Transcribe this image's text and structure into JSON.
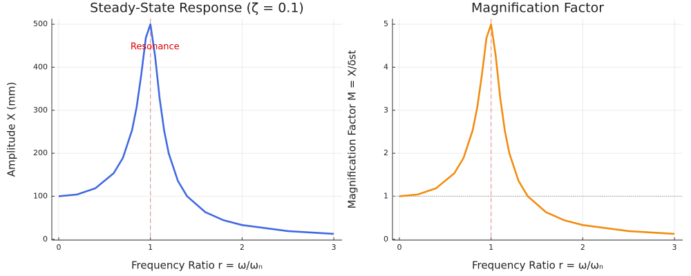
{
  "chart_data": [
    {
      "type": "line",
      "title": "Steady-State Response (ζ = 0.1)",
      "x_label": "Frequency Ratio r = ω/ωₙ",
      "y_label": "Amplitude X (mm)",
      "x": [
        0,
        0.2,
        0.4,
        0.6,
        0.7,
        0.8,
        0.85,
        0.9,
        0.95,
        1.0,
        1.05,
        1.1,
        1.15,
        1.2,
        1.3,
        1.4,
        1.6,
        1.8,
        2.0,
        2.5,
        3.0
      ],
      "series": [
        {
          "color": "#4169e1",
          "values": [
            100,
            104.1,
            118.5,
            153.6,
            189.1,
            253.8,
            307.3,
            382.1,
            468.2,
            500,
            427.9,
            328.8,
            252.5,
            199.5,
            135.6,
            100,
            62.8,
            44.1,
            33.0,
            19.0,
            12.5
          ]
        }
      ],
      "xlim": [
        -0.075,
        3.09
      ],
      "ylim": [
        -2,
        513
      ],
      "xticks": [
        0,
        1,
        2,
        3
      ],
      "yticks": [
        0,
        100,
        200,
        300,
        400,
        500
      ],
      "vlines": [
        {
          "x": 1,
          "color": "#e06060"
        }
      ],
      "hlines": [],
      "annotations": [
        {
          "text": "Resonance",
          "x": 1.05,
          "y": 447,
          "color": "#e00000"
        }
      ],
      "grid": true
    },
    {
      "type": "line",
      "title": "Magnification Factor",
      "x_label": "Frequency Ratio r = ω/ωₙ",
      "y_label": "Magnification Factor M = X/δst",
      "x": [
        0,
        0.2,
        0.4,
        0.6,
        0.7,
        0.8,
        0.85,
        0.9,
        0.95,
        1.0,
        1.05,
        1.1,
        1.15,
        1.2,
        1.3,
        1.4,
        1.6,
        1.8,
        2.0,
        2.5,
        3.0
      ],
      "series": [
        {
          "color": "#f28c0f",
          "values": [
            1,
            1.041,
            1.185,
            1.536,
            1.891,
            2.538,
            3.073,
            3.821,
            4.682,
            5.0,
            4.279,
            3.288,
            2.525,
            1.995,
            1.356,
            1.0,
            0.628,
            0.441,
            0.33,
            0.19,
            0.125
          ]
        }
      ],
      "xlim": [
        -0.075,
        3.09
      ],
      "ylim": [
        -0.02,
        5.13
      ],
      "xticks": [
        0,
        1,
        2,
        3
      ],
      "yticks": [
        0,
        1,
        2,
        3,
        4,
        5
      ],
      "vlines": [
        {
          "x": 1,
          "color": "#e06060"
        }
      ],
      "hlines": [
        {
          "y": 1,
          "color": "#999999"
        }
      ],
      "annotations": [],
      "grid": true
    }
  ]
}
